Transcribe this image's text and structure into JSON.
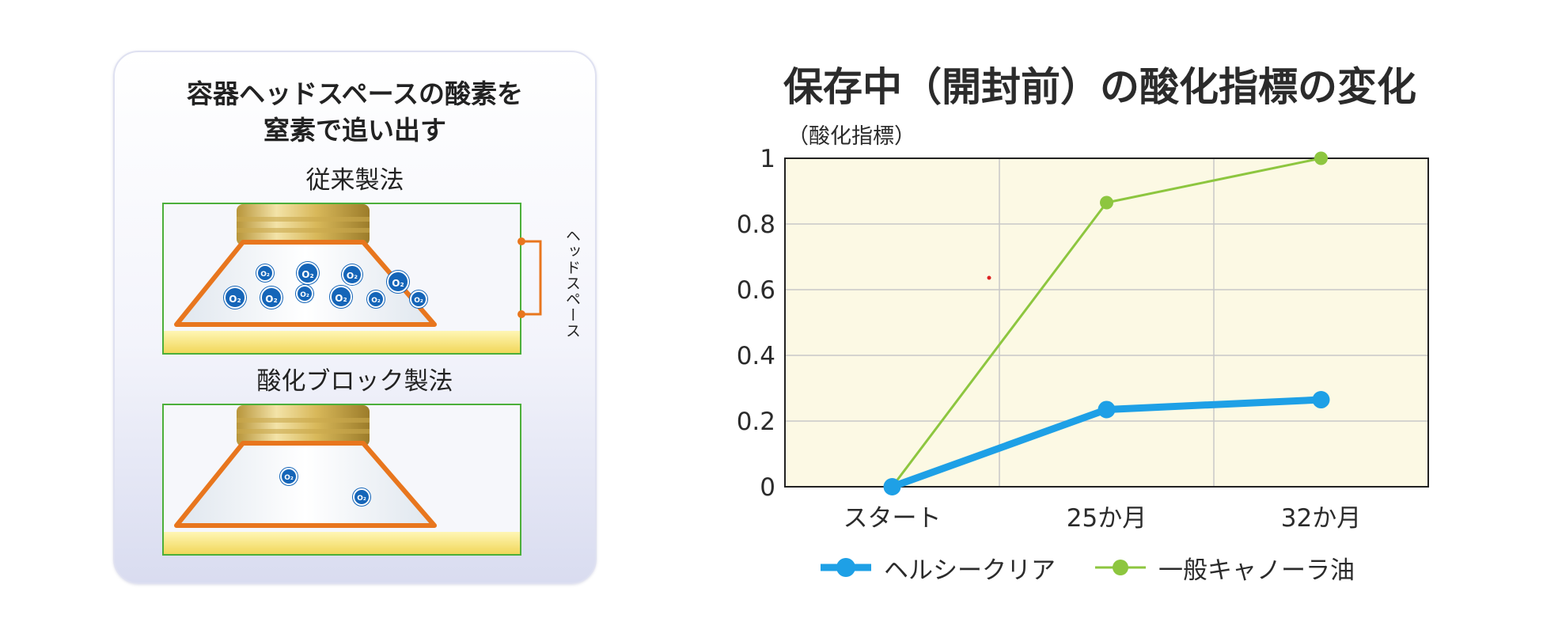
{
  "illustration": {
    "title_line1": "容器ヘッドスペースの酸素を",
    "title_line2": "窒素で追い出す",
    "method_conventional": "従来製法",
    "method_block": "酸化ブロック製法",
    "headspace_label": "ヘッドスペース",
    "oxygen_symbol": "O₂",
    "colors": {
      "frame": "#4caf3a",
      "bottle_outline": "#e8761e",
      "oxygen": "#1565b8",
      "cap": "#d8b85a"
    }
  },
  "chart_data": {
    "type": "line",
    "title": "保存中（開封前）の酸化指標の変化",
    "ylabel": "（酸化指標）",
    "xlabel": "",
    "categories": [
      "スタート",
      "25か月",
      "32か月"
    ],
    "ylim": [
      0,
      1
    ],
    "yticks": [
      "0",
      "0.2",
      "0.4",
      "0.6",
      "0.8",
      "1"
    ],
    "grid": true,
    "legend_position": "bottom",
    "series": [
      {
        "name": "ヘルシークリア",
        "values": [
          0,
          0.235,
          0.265
        ],
        "color": "#1ea0e6"
      },
      {
        "name": "一般キャノーラ油",
        "values": [
          0,
          0.865,
          1.0
        ],
        "color": "#8dc63f"
      }
    ]
  }
}
